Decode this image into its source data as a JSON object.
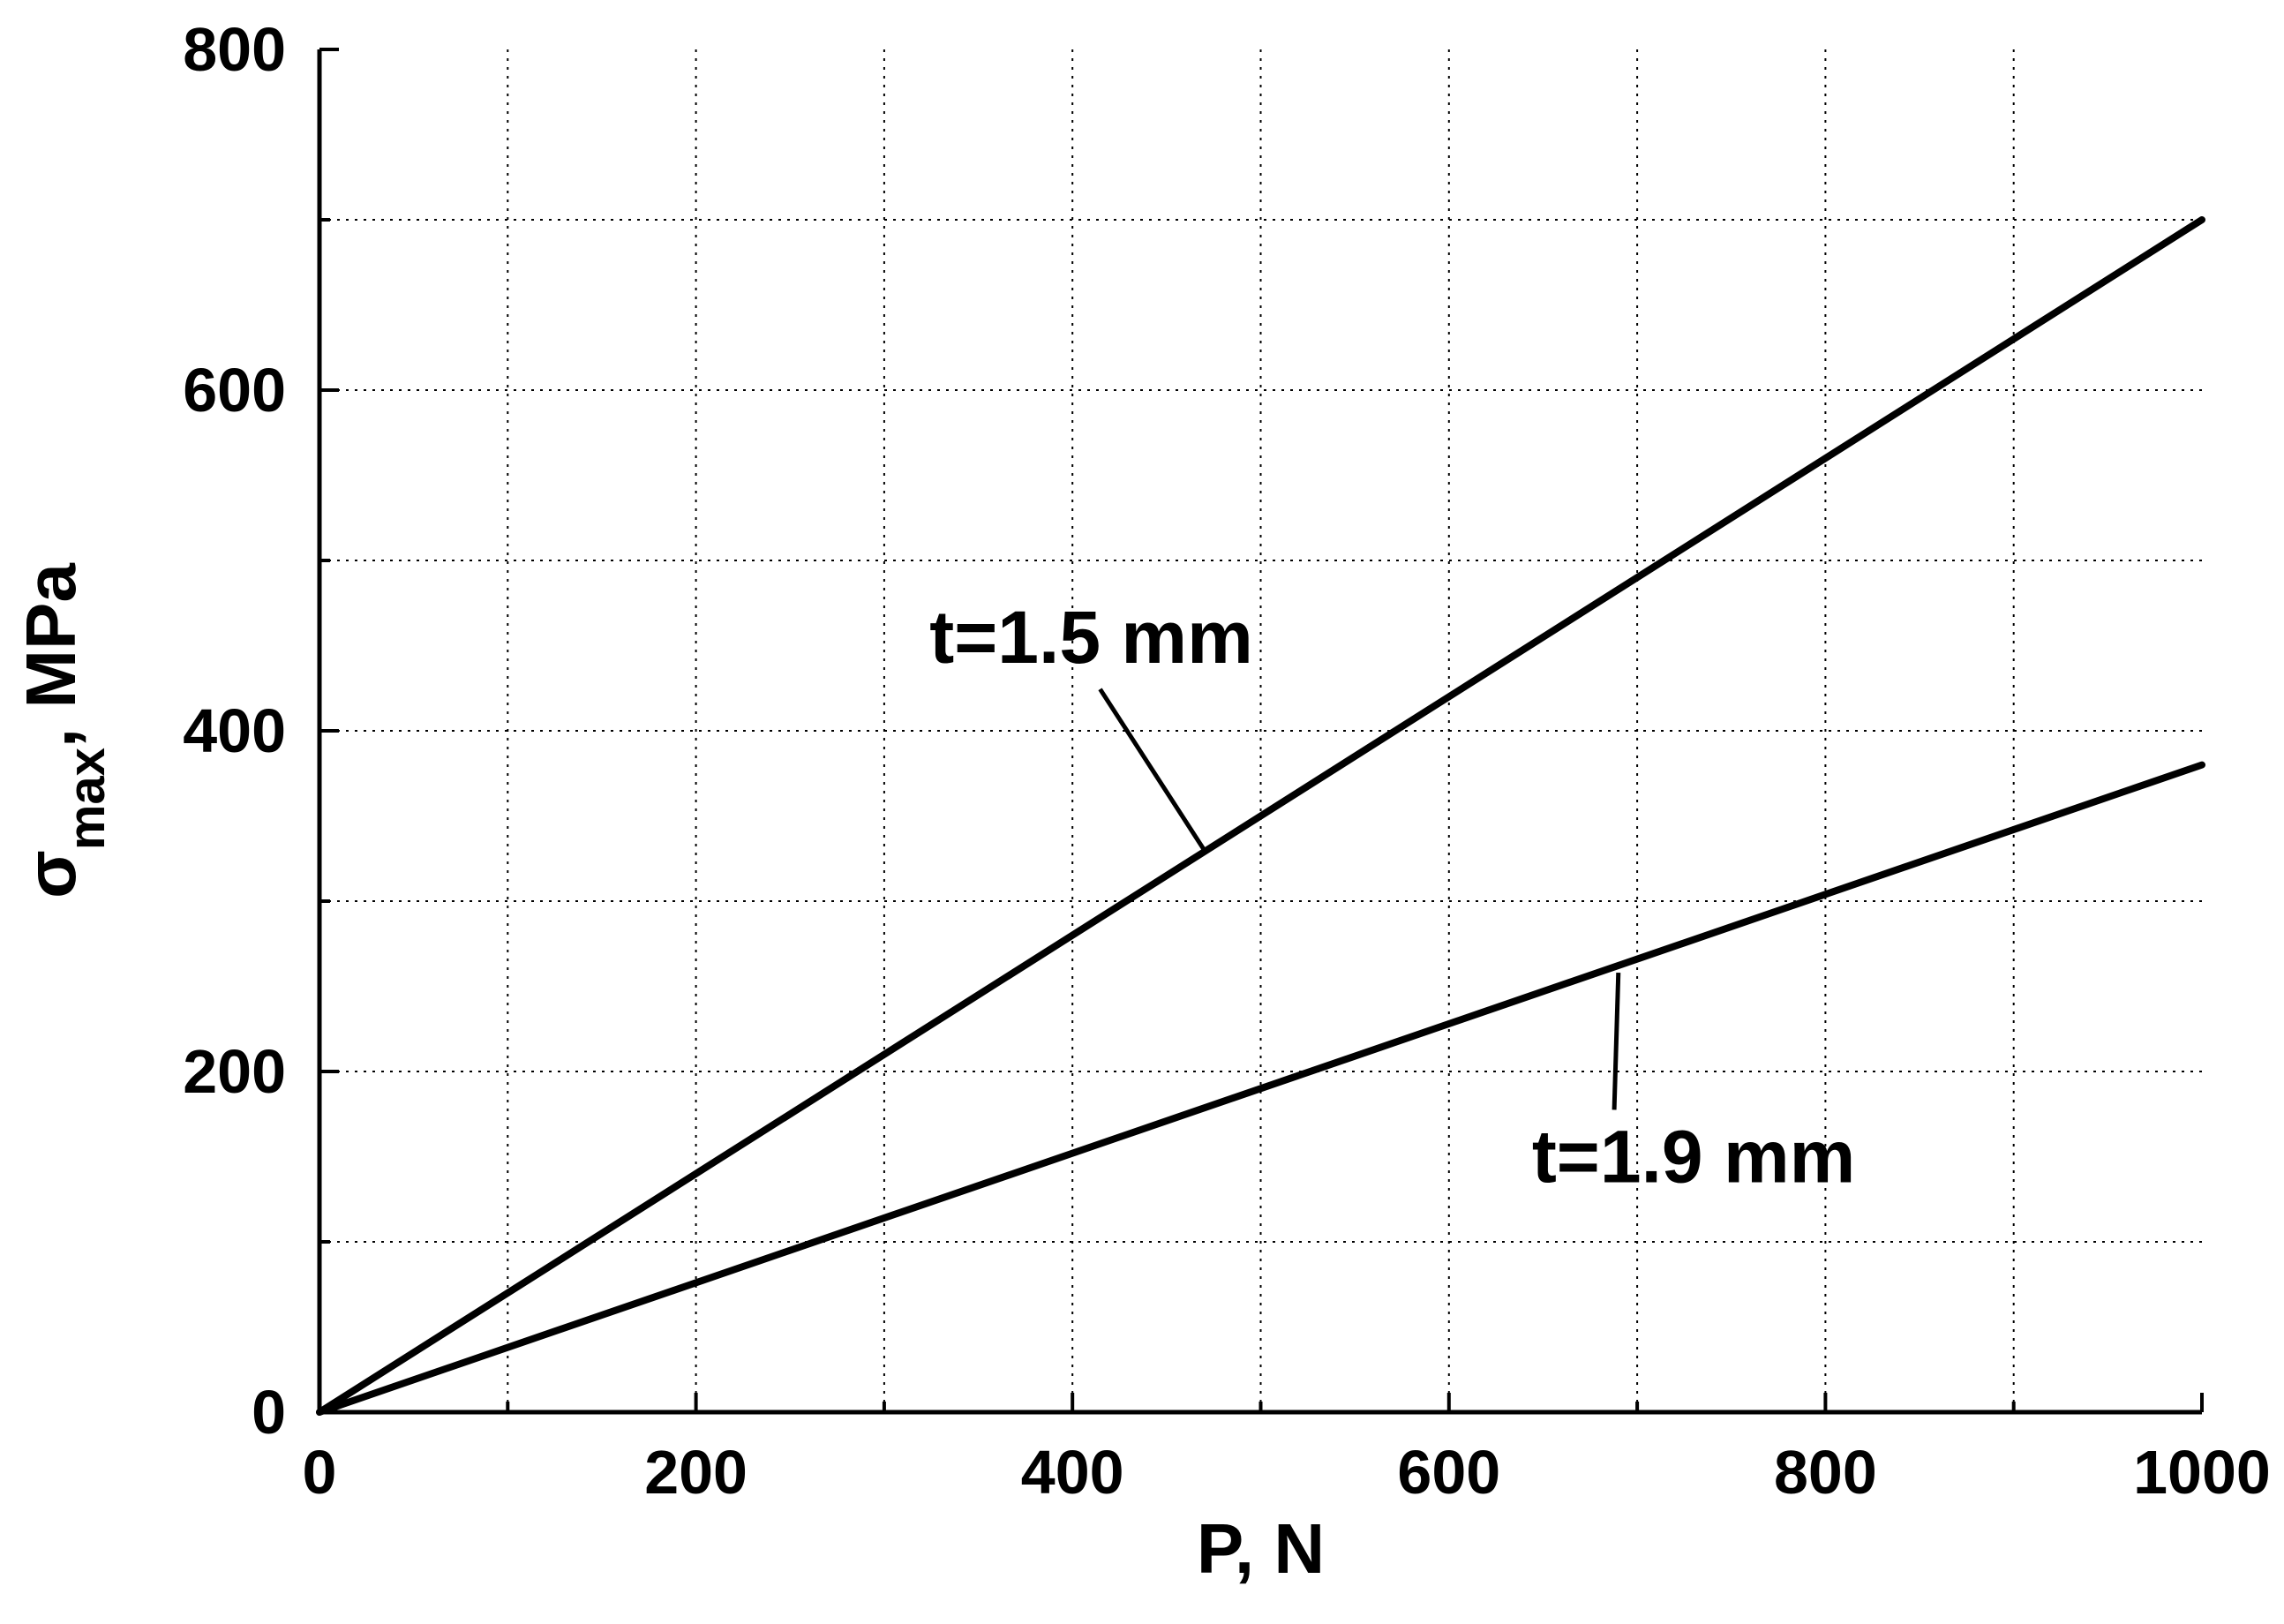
{
  "chart_data": {
    "type": "line",
    "title": "",
    "xlabel": "P, N",
    "ylabel": {
      "symbol": "σ",
      "subscript": "max",
      "suffix": ", MPa"
    },
    "xlim": [
      0,
      1000
    ],
    "ylim": [
      0,
      800
    ],
    "x_major_ticks": [
      0,
      200,
      400,
      600,
      800,
      1000
    ],
    "x_minor_ticks": [
      100,
      300,
      500,
      700,
      900
    ],
    "y_major_ticks": [
      0,
      200,
      400,
      600,
      800
    ],
    "y_minor_ticks": [
      100,
      300,
      500,
      700
    ],
    "x_tick_labels": [
      "0",
      "200",
      "400",
      "600",
      "800",
      "1000"
    ],
    "y_tick_labels": [
      "0",
      "200",
      "400",
      "600",
      "800"
    ],
    "grid": true,
    "legend": "none",
    "series": [
      {
        "label": "t=1.5 mm",
        "x": [
          0,
          1000
        ],
        "y": [
          0,
          700
        ],
        "color": "#000000",
        "annotation_point": {
          "x": 470,
          "y": 330
        },
        "label_anchor": {
          "x": 410,
          "y": 440
        }
      },
      {
        "label": "t=1.9 mm",
        "x": [
          0,
          1000
        ],
        "y": [
          0,
          380
        ],
        "color": "#000000",
        "annotation_point": {
          "x": 690,
          "y": 258
        },
        "label_anchor": {
          "x": 730,
          "y": 135
        }
      }
    ]
  }
}
